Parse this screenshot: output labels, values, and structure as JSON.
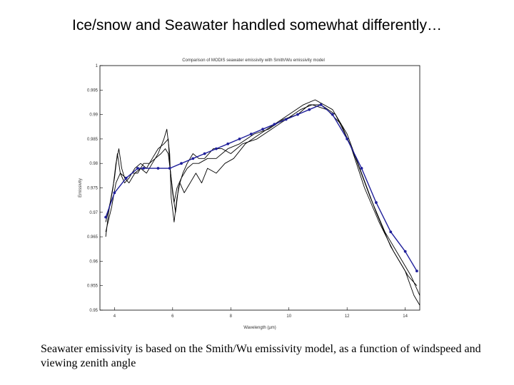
{
  "slide": {
    "title": "Ice/snow and Seawater handled somewhat differently…",
    "caption": "Seawater emissivity is based on the Smith/Wu emissivity model, as a function of windspeed and viewing zenith angle"
  },
  "chart_data": {
    "type": "line",
    "title": "Comparison of MODIS seawater emissivity with Smith/Wu emissivity model",
    "xlabel": "Wavelength (µm)",
    "ylabel": "Emissivity",
    "xlim": [
      3.5,
      14.5
    ],
    "ylim": [
      0.95,
      1.0
    ],
    "xticks": [
      4,
      6,
      8,
      10,
      12,
      14
    ],
    "xtick_labels": [
      "4",
      "6",
      "8",
      "10",
      "12",
      "14"
    ],
    "yticks": [
      0.95,
      0.955,
      0.96,
      0.965,
      0.97,
      0.975,
      0.98,
      0.985,
      0.99,
      0.995,
      1.0
    ],
    "ytick_labels": [
      "0.95",
      "0.955",
      "0.96",
      "0.965",
      "0.97",
      "0.975",
      "0.98",
      "0.985",
      "0.99",
      "0.995",
      "1"
    ],
    "grid": false,
    "colors": {
      "measured": "#000000",
      "model": "#1f1f9a"
    },
    "series": [
      {
        "kind": "measured",
        "x": [
          3.7,
          3.8,
          3.95,
          4.05,
          4.15,
          4.25,
          4.35,
          4.5,
          4.7,
          4.9,
          5.1,
          5.3,
          5.5,
          5.7,
          5.8,
          5.9,
          5.95,
          6.05,
          6.15,
          6.25,
          6.4,
          6.6,
          6.8,
          7.0,
          7.2,
          7.5,
          7.8,
          8.1,
          8.5,
          9.0,
          9.5,
          10.0,
          10.5,
          10.9,
          11.5,
          12.0,
          12.5,
          13.0,
          13.5,
          14.0,
          14.3,
          14.5
        ],
        "y": [
          0.965,
          0.97,
          0.975,
          0.98,
          0.983,
          0.979,
          0.977,
          0.976,
          0.978,
          0.979,
          0.978,
          0.98,
          0.982,
          0.985,
          0.987,
          0.982,
          0.973,
          0.968,
          0.973,
          0.976,
          0.974,
          0.976,
          0.978,
          0.976,
          0.979,
          0.978,
          0.98,
          0.981,
          0.984,
          0.986,
          0.988,
          0.99,
          0.992,
          0.993,
          0.991,
          0.986,
          0.978,
          0.97,
          0.963,
          0.958,
          0.953,
          0.951
        ]
      },
      {
        "kind": "measured",
        "x": [
          3.7,
          3.85,
          4.0,
          4.1,
          4.2,
          4.35,
          4.5,
          4.7,
          4.9,
          5.1,
          5.3,
          5.5,
          5.7,
          5.85,
          5.9,
          6.0,
          6.1,
          6.2,
          6.35,
          6.5,
          6.7,
          6.9,
          7.1,
          7.4,
          7.7,
          8.0,
          8.4,
          8.9,
          9.4,
          9.9,
          10.4,
          10.8,
          11.3,
          11.8,
          12.3,
          12.8,
          13.3,
          13.8,
          14.2,
          14.5
        ],
        "y": [
          0.968,
          0.972,
          0.977,
          0.982,
          0.978,
          0.976,
          0.977,
          0.979,
          0.98,
          0.979,
          0.981,
          0.983,
          0.984,
          0.985,
          0.98,
          0.974,
          0.97,
          0.975,
          0.978,
          0.98,
          0.982,
          0.981,
          0.981,
          0.983,
          0.983,
          0.982,
          0.984,
          0.985,
          0.987,
          0.989,
          0.991,
          0.992,
          0.991,
          0.988,
          0.981,
          0.973,
          0.966,
          0.961,
          0.957,
          0.953
        ]
      },
      {
        "kind": "measured",
        "x": [
          3.7,
          3.9,
          4.05,
          4.2,
          4.4,
          4.6,
          4.8,
          5.0,
          5.2,
          5.4,
          5.6,
          5.75,
          5.85,
          5.95,
          6.05,
          6.15,
          6.3,
          6.5,
          6.7,
          6.9,
          7.2,
          7.5,
          7.9,
          8.3,
          8.8,
          9.3,
          9.8,
          10.3,
          10.7,
          11.1,
          11.6,
          12.1,
          12.6,
          13.1,
          13.6,
          14.1,
          14.4
        ],
        "y": [
          0.966,
          0.971,
          0.976,
          0.978,
          0.977,
          0.978,
          0.978,
          0.98,
          0.98,
          0.981,
          0.982,
          0.983,
          0.982,
          0.977,
          0.972,
          0.975,
          0.977,
          0.979,
          0.98,
          0.98,
          0.981,
          0.981,
          0.983,
          0.984,
          0.986,
          0.987,
          0.989,
          0.99,
          0.992,
          0.992,
          0.99,
          0.984,
          0.975,
          0.968,
          0.962,
          0.957,
          0.955
        ]
      },
      {
        "kind": "model",
        "markers": true,
        "x": [
          3.7,
          4.0,
          4.4,
          4.8,
          5.0,
          5.5,
          5.9,
          6.3,
          6.7,
          7.1,
          7.5,
          7.9,
          8.3,
          8.7,
          9.1,
          9.5,
          9.9,
          10.3,
          10.7,
          11.1,
          11.5,
          12.0,
          12.5,
          13.0,
          13.5,
          14.0,
          14.4
        ],
        "y": [
          0.969,
          0.974,
          0.977,
          0.979,
          0.979,
          0.979,
          0.979,
          0.98,
          0.981,
          0.982,
          0.983,
          0.984,
          0.985,
          0.986,
          0.987,
          0.988,
          0.989,
          0.99,
          0.991,
          0.992,
          0.99,
          0.985,
          0.979,
          0.972,
          0.966,
          0.962,
          0.958
        ]
      }
    ]
  }
}
